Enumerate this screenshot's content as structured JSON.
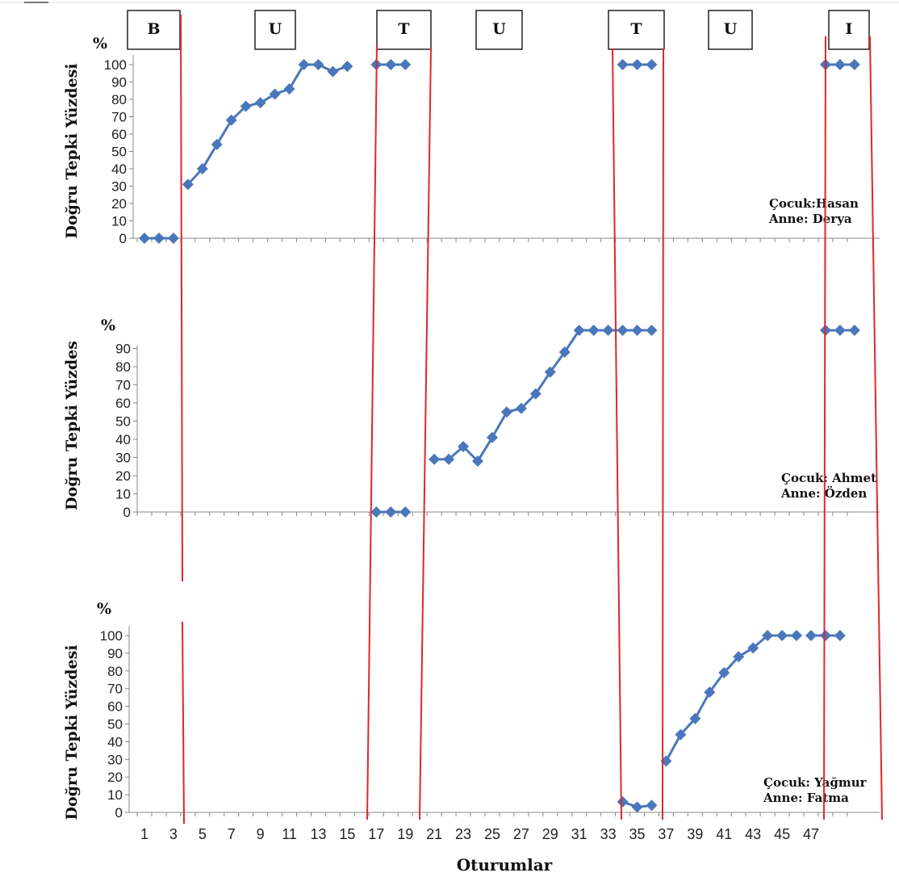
{
  "phase_labels": [
    "B",
    "U",
    "T",
    "U",
    "T",
    "U",
    "I"
  ],
  "x_axis_title": "Oturumlar",
  "percent_symbol": "%",
  "chart_data": [
    {
      "type": "line",
      "ylabel": "Doğru Tepki Yüzdesi",
      "ylim": [
        0,
        100
      ],
      "yticks": [
        0,
        10,
        20,
        30,
        40,
        50,
        60,
        70,
        80,
        90,
        100
      ],
      "annotation": [
        "Çocuk:Hasan",
        "Anne:   Derya"
      ],
      "segments": [
        [
          [
            1,
            0
          ],
          [
            2,
            0
          ],
          [
            3,
            0
          ]
        ],
        [
          [
            4,
            31
          ],
          [
            5,
            40
          ],
          [
            6,
            54
          ],
          [
            7,
            68
          ],
          [
            8,
            76
          ],
          [
            9,
            78
          ],
          [
            10,
            83
          ],
          [
            11,
            86
          ],
          [
            12,
            100
          ],
          [
            13,
            100
          ],
          [
            14,
            96
          ],
          [
            15,
            99
          ]
        ],
        [
          [
            17,
            100
          ],
          [
            18,
            100
          ],
          [
            19,
            100
          ]
        ],
        [
          [
            34,
            100
          ],
          [
            35,
            100
          ],
          [
            36,
            100
          ]
        ],
        [
          [
            48,
            100
          ],
          [
            49,
            100
          ],
          [
            50,
            100
          ]
        ]
      ]
    },
    {
      "type": "line",
      "ylabel": "Doğru Tepki Yüzdes",
      "ylim": [
        0,
        100
      ],
      "yticks": [
        0,
        10,
        20,
        30,
        40,
        50,
        60,
        70,
        80,
        90
      ],
      "annotation": [
        "Çocuk: Ahmet",
        "Anne:   Özden"
      ],
      "segments": [
        [
          [
            17,
            0
          ],
          [
            18,
            0
          ],
          [
            19,
            0
          ]
        ],
        [
          [
            21,
            29
          ],
          [
            22,
            29
          ],
          [
            23,
            36
          ],
          [
            24,
            28
          ],
          [
            25,
            41
          ],
          [
            26,
            55
          ],
          [
            27,
            57
          ],
          [
            28,
            65
          ],
          [
            29,
            77
          ],
          [
            30,
            88
          ],
          [
            31,
            100
          ],
          [
            32,
            100
          ],
          [
            33,
            100
          ],
          [
            34,
            100
          ],
          [
            35,
            100
          ],
          [
            36,
            100
          ]
        ],
        [
          [
            48,
            100
          ],
          [
            49,
            100
          ],
          [
            50,
            100
          ]
        ]
      ]
    },
    {
      "type": "line",
      "ylabel": "Doğru Tepki Yüzdesi",
      "ylim": [
        0,
        100
      ],
      "yticks": [
        0,
        10,
        20,
        30,
        40,
        50,
        60,
        70,
        80,
        90,
        100
      ],
      "xticks": [
        1,
        3,
        5,
        7,
        9,
        11,
        13,
        15,
        17,
        19,
        21,
        23,
        25,
        27,
        29,
        31,
        33,
        35,
        37,
        39,
        41,
        43,
        45,
        47
      ],
      "xlabel": "Oturumlar",
      "annotation": [
        "Çocuk: Yağmur",
        "Anne: Fatma"
      ],
      "segments": [
        [
          [
            34,
            6
          ],
          [
            35,
            3
          ],
          [
            36,
            4
          ]
        ],
        [
          [
            37,
            29
          ],
          [
            38,
            44
          ],
          [
            39,
            53
          ],
          [
            40,
            68
          ],
          [
            41,
            79
          ],
          [
            42,
            88
          ],
          [
            43,
            93
          ],
          [
            44,
            100
          ],
          [
            45,
            100
          ],
          [
            46,
            100
          ]
        ],
        [
          [
            47,
            100
          ],
          [
            48,
            100
          ],
          [
            49,
            100
          ]
        ]
      ]
    }
  ]
}
